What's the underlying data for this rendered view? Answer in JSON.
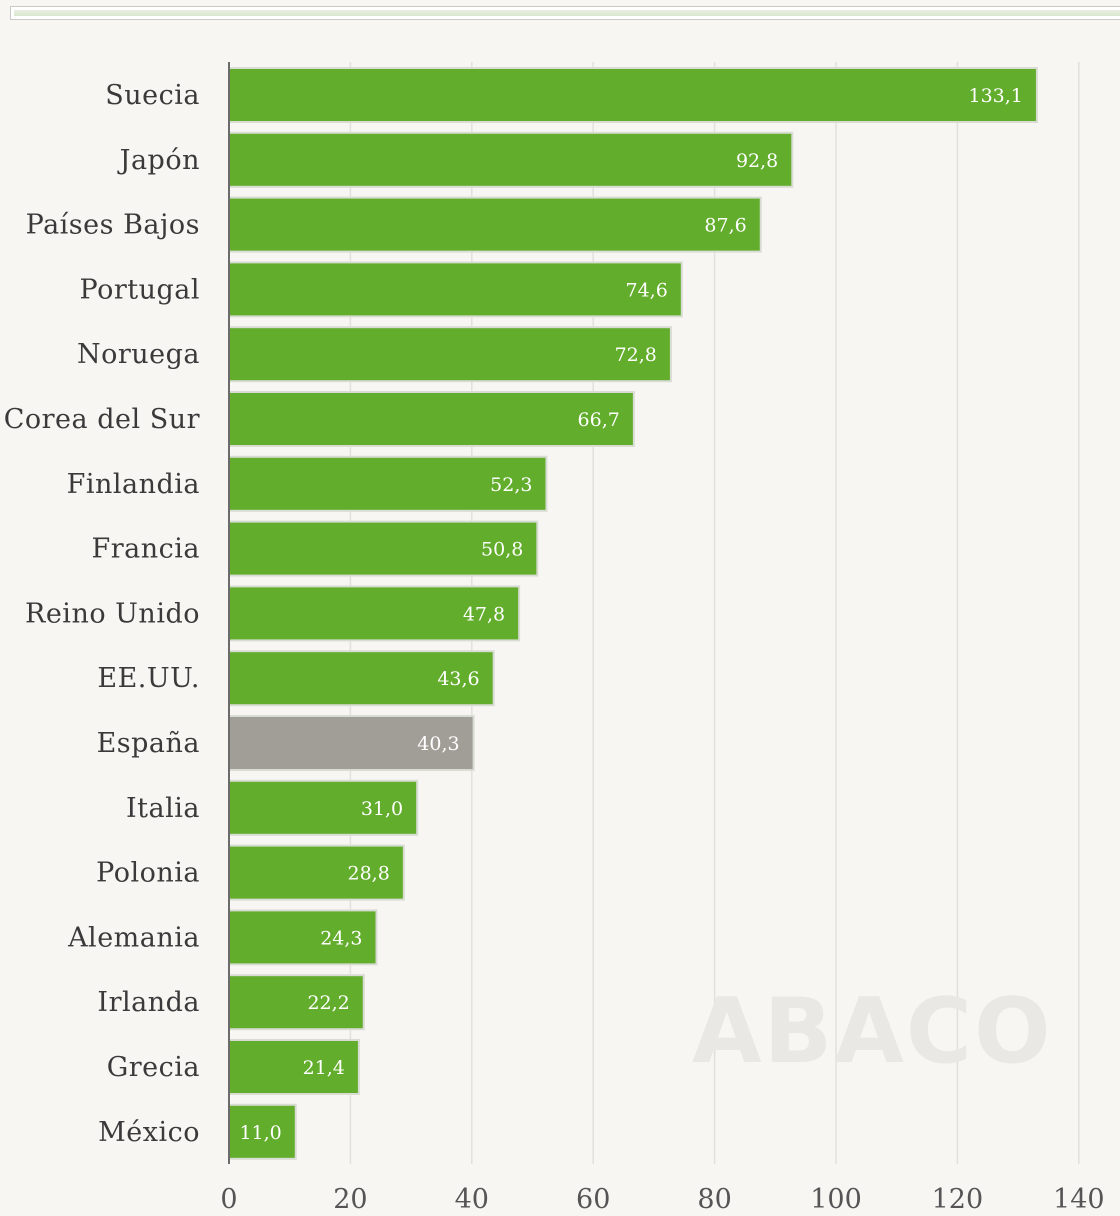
{
  "watermark": "ABACO",
  "colors": {
    "bar_default": "#62ad2c",
    "bar_highlight": "#a09e97",
    "bar_border": "#d8dcd2",
    "grid": "#e1e0dc",
    "axis": "#6b6b6b",
    "background": "#f7f6f3"
  },
  "chart_data": {
    "type": "bar",
    "orientation": "horizontal",
    "categories": [
      "Suecia",
      "Japón",
      "Países Bajos",
      "Portugal",
      "Noruega",
      "Corea del Sur",
      "Finlandia",
      "Francia",
      "Reino Unido",
      "EE.UU.",
      "España",
      "Italia",
      "Polonia",
      "Alemania",
      "Irlanda",
      "Grecia",
      "México"
    ],
    "values": [
      133.1,
      92.8,
      87.6,
      74.6,
      72.8,
      66.7,
      52.3,
      50.8,
      47.8,
      43.6,
      40.3,
      31.0,
      28.8,
      24.3,
      22.2,
      21.4,
      11.0
    ],
    "value_labels": [
      "133,1",
      "92,8",
      "87,6",
      "74,6",
      "72,8",
      "66,7",
      "52,3",
      "50,8",
      "47,8",
      "43,6",
      "40,3",
      "31,0",
      "28,8",
      "24,3",
      "22,2",
      "21,4",
      "11,0"
    ],
    "highlight": "España",
    "xlim": [
      0,
      140
    ],
    "xticks": [
      0,
      20,
      40,
      60,
      80,
      100,
      120,
      140
    ],
    "xtick_labels": [
      "0",
      "20",
      "40",
      "60",
      "80",
      "100",
      "120",
      "140"
    ],
    "grid": true,
    "title": "",
    "xlabel": "",
    "ylabel": ""
  }
}
